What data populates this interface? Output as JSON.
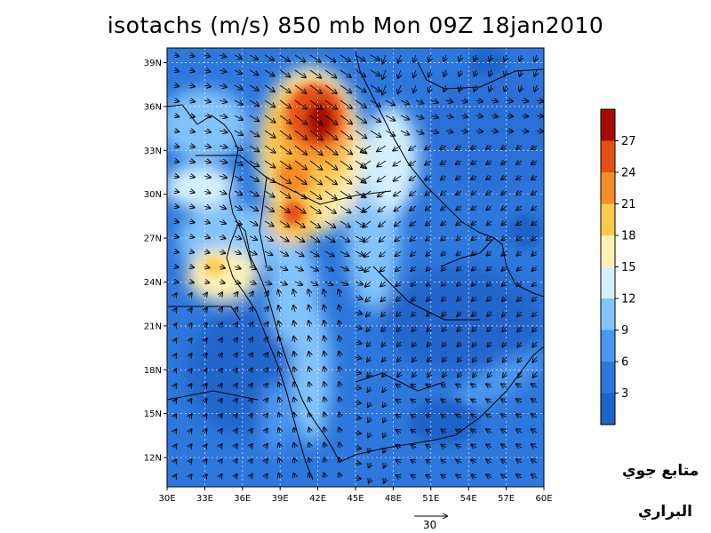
{
  "title": "isotachs (m/s) 850 mb Mon 09Z 18jan2010",
  "map": {
    "lon_range": [
      30,
      60
    ],
    "lat_range": [
      10,
      40
    ],
    "lat_labels": [
      "39N",
      "36N",
      "33N",
      "30N",
      "27N",
      "24N",
      "21N",
      "18N",
      "15N",
      "12N"
    ],
    "lon_labels": [
      "30E",
      "33E",
      "36E",
      "39E",
      "42E",
      "45E",
      "48E",
      "51E",
      "54E",
      "57E",
      "60E"
    ],
    "reference_vector": "30",
    "gridlines": true
  },
  "colorbar": {
    "labels": [
      "3",
      "6",
      "9",
      "12",
      "15",
      "18",
      "21",
      "24",
      "27"
    ],
    "colors": [
      "#1e64c8",
      "#2d78dc",
      "#4b96f0",
      "#82c3fa",
      "#d2f0ff",
      "#fff0b4",
      "#fac84b",
      "#f58c28",
      "#e65014",
      "#a50a05"
    ]
  },
  "credits": {
    "line1": "متابع جوي",
    "line2": "البراري"
  }
}
